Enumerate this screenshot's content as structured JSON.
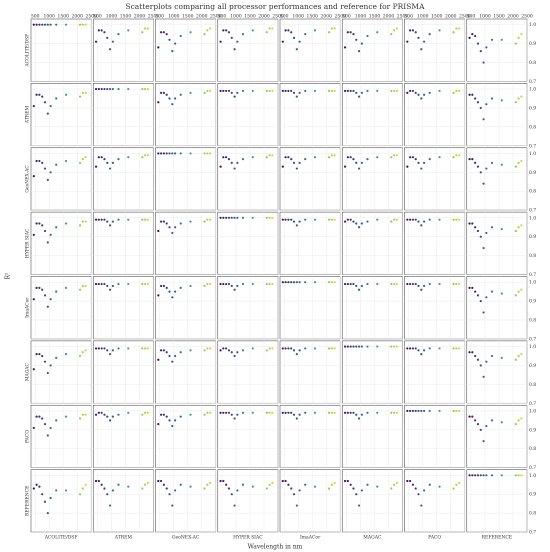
{
  "chart_data": {
    "type": "scatter_matrix",
    "title": "Scatterplots comparing all processor performances and reference for PRISMA",
    "x_label": "Wavelength in nm",
    "y_label": "R²",
    "processors": [
      "ACOLITE/DSF",
      "ATREM",
      "GeoNEX-AC",
      "HYPER SIAC",
      "ImaACor",
      "MAGAC",
      "PACO",
      "REFERENCE"
    ],
    "x": [
      450,
      550,
      650,
      750,
      850,
      950,
      1050,
      1250,
      1600,
      2100,
      2200,
      2300
    ],
    "xlim": [
      350,
      2500
    ],
    "xticks": [
      500,
      1000,
      1500,
      2000,
      2500
    ],
    "ylim": [
      0.7,
      1.03
    ],
    "yticks": [
      0.7,
      0.8,
      0.9,
      {
        "value": 1,
        "label": "1.0"
      }
    ],
    "grid": true,
    "colormap": "viridis",
    "panels": [
      [
        [
          1,
          1,
          1,
          1,
          1,
          1,
          1,
          1,
          1,
          1,
          1,
          1
        ],
        [
          0.91,
          0.97,
          0.97,
          0.96,
          0.93,
          0.87,
          0.91,
          0.95,
          0.97,
          0.96,
          0.98,
          0.98
        ],
        [
          0.88,
          0.96,
          0.96,
          0.95,
          0.92,
          0.86,
          0.9,
          0.94,
          0.96,
          0.95,
          0.97,
          0.98
        ],
        [
          0.91,
          0.97,
          0.97,
          0.96,
          0.93,
          0.87,
          0.91,
          0.95,
          0.97,
          0.96,
          0.98,
          0.98
        ],
        [
          0.91,
          0.97,
          0.97,
          0.96,
          0.93,
          0.87,
          0.91,
          0.95,
          0.97,
          0.96,
          0.98,
          0.98
        ],
        [
          0.88,
          0.96,
          0.96,
          0.95,
          0.92,
          0.86,
          0.9,
          0.94,
          0.96,
          0.95,
          0.97,
          0.98
        ],
        [
          0.91,
          0.97,
          0.97,
          0.96,
          0.93,
          0.87,
          0.91,
          0.95,
          0.97,
          0.96,
          0.98,
          0.98
        ],
        [
          0.93,
          0.95,
          0.94,
          0.9,
          0.86,
          0.8,
          0.88,
          0.92,
          0.92,
          0.9,
          0.93,
          0.95
        ]
      ],
      [
        [
          0.91,
          0.97,
          0.97,
          0.96,
          0.93,
          0.87,
          0.91,
          0.95,
          0.97,
          0.96,
          0.98,
          0.98
        ],
        [
          1,
          1,
          1,
          1,
          1,
          1,
          1,
          1,
          1,
          1,
          1,
          1
        ],
        [
          0.93,
          0.98,
          0.98,
          0.97,
          0.95,
          0.92,
          0.95,
          0.97,
          0.98,
          0.98,
          0.99,
          0.99
        ],
        [
          0.99,
          0.99,
          0.99,
          0.99,
          0.98,
          0.96,
          0.98,
          0.99,
          0.99,
          0.99,
          0.99,
          0.99
        ],
        [
          0.99,
          0.99,
          0.99,
          0.99,
          0.98,
          0.96,
          0.98,
          0.99,
          0.99,
          0.99,
          0.99,
          0.99
        ],
        [
          0.99,
          0.99,
          0.99,
          0.99,
          0.98,
          0.96,
          0.98,
          0.99,
          0.99,
          0.99,
          0.99,
          0.99
        ],
        [
          0.98,
          0.99,
          0.99,
          0.98,
          0.97,
          0.95,
          0.97,
          0.98,
          0.99,
          0.98,
          0.99,
          0.99
        ],
        [
          0.97,
          0.97,
          0.95,
          0.93,
          0.9,
          0.84,
          0.92,
          0.95,
          0.94,
          0.93,
          0.95,
          0.96
        ]
      ],
      [
        [
          0.88,
          0.96,
          0.96,
          0.95,
          0.92,
          0.86,
          0.9,
          0.94,
          0.96,
          0.95,
          0.97,
          0.98
        ],
        [
          0.93,
          0.98,
          0.98,
          0.97,
          0.95,
          0.92,
          0.95,
          0.97,
          0.98,
          0.98,
          0.99,
          0.99
        ],
        [
          1,
          1,
          1,
          1,
          1,
          1,
          1,
          1,
          1,
          1,
          1,
          1
        ],
        [
          0.93,
          0.98,
          0.98,
          0.97,
          0.95,
          0.92,
          0.95,
          0.97,
          0.98,
          0.98,
          0.99,
          0.99
        ],
        [
          0.93,
          0.98,
          0.98,
          0.97,
          0.95,
          0.92,
          0.95,
          0.97,
          0.98,
          0.98,
          0.99,
          0.99
        ],
        [
          0.93,
          0.98,
          0.98,
          0.97,
          0.95,
          0.92,
          0.95,
          0.97,
          0.98,
          0.98,
          0.99,
          0.99
        ],
        [
          0.93,
          0.98,
          0.98,
          0.97,
          0.95,
          0.92,
          0.95,
          0.97,
          0.98,
          0.98,
          0.99,
          0.99
        ],
        [
          0.97,
          0.97,
          0.95,
          0.93,
          0.9,
          0.84,
          0.92,
          0.95,
          0.94,
          0.93,
          0.95,
          0.96
        ]
      ],
      [
        [
          0.91,
          0.97,
          0.97,
          0.96,
          0.93,
          0.87,
          0.91,
          0.95,
          0.97,
          0.96,
          0.98,
          0.98
        ],
        [
          0.99,
          0.99,
          0.99,
          0.99,
          0.98,
          0.96,
          0.98,
          0.99,
          0.99,
          0.99,
          0.99,
          0.99
        ],
        [
          0.93,
          0.98,
          0.98,
          0.97,
          0.95,
          0.92,
          0.95,
          0.97,
          0.98,
          0.98,
          0.99,
          0.99
        ],
        [
          1,
          1,
          1,
          1,
          1,
          1,
          1,
          1,
          1,
          1,
          1,
          1
        ],
        [
          0.99,
          0.99,
          0.99,
          0.99,
          0.98,
          0.96,
          0.98,
          0.99,
          0.99,
          0.99,
          0.99,
          0.99
        ],
        [
          0.98,
          0.99,
          0.99,
          0.98,
          0.97,
          0.95,
          0.97,
          0.98,
          0.99,
          0.98,
          0.99,
          0.99
        ],
        [
          0.99,
          0.99,
          0.99,
          0.99,
          0.98,
          0.96,
          0.98,
          0.99,
          0.99,
          0.99,
          0.99,
          0.99
        ],
        [
          0.97,
          0.97,
          0.95,
          0.93,
          0.9,
          0.84,
          0.92,
          0.95,
          0.94,
          0.93,
          0.95,
          0.96
        ]
      ],
      [
        [
          0.91,
          0.97,
          0.97,
          0.96,
          0.93,
          0.87,
          0.91,
          0.95,
          0.97,
          0.96,
          0.98,
          0.98
        ],
        [
          0.99,
          0.99,
          0.99,
          0.99,
          0.98,
          0.96,
          0.98,
          0.99,
          0.99,
          0.99,
          0.99,
          0.99
        ],
        [
          0.93,
          0.98,
          0.98,
          0.97,
          0.95,
          0.92,
          0.95,
          0.97,
          0.98,
          0.98,
          0.99,
          0.99
        ],
        [
          0.99,
          0.99,
          0.99,
          0.99,
          0.98,
          0.96,
          0.98,
          0.99,
          0.99,
          0.99,
          0.99,
          0.99
        ],
        [
          1,
          1,
          1,
          1,
          1,
          1,
          1,
          1,
          1,
          1,
          1,
          1
        ],
        [
          0.99,
          0.99,
          0.99,
          0.99,
          0.98,
          0.96,
          0.98,
          0.99,
          0.99,
          0.99,
          0.99,
          0.99
        ],
        [
          0.99,
          0.99,
          0.99,
          0.99,
          0.98,
          0.96,
          0.98,
          0.99,
          0.99,
          0.99,
          0.99,
          0.99
        ],
        [
          0.97,
          0.97,
          0.95,
          0.93,
          0.9,
          0.84,
          0.92,
          0.95,
          0.94,
          0.93,
          0.95,
          0.96
        ]
      ],
      [
        [
          0.88,
          0.96,
          0.96,
          0.95,
          0.92,
          0.86,
          0.9,
          0.94,
          0.96,
          0.95,
          0.97,
          0.98
        ],
        [
          0.99,
          0.99,
          0.99,
          0.99,
          0.98,
          0.96,
          0.98,
          0.99,
          0.99,
          0.99,
          0.99,
          0.99
        ],
        [
          0.93,
          0.98,
          0.98,
          0.97,
          0.95,
          0.92,
          0.95,
          0.97,
          0.98,
          0.98,
          0.99,
          0.99
        ],
        [
          0.98,
          0.99,
          0.99,
          0.98,
          0.97,
          0.95,
          0.97,
          0.98,
          0.99,
          0.98,
          0.99,
          0.99
        ],
        [
          0.99,
          0.99,
          0.99,
          0.99,
          0.98,
          0.96,
          0.98,
          0.99,
          0.99,
          0.99,
          0.99,
          0.99
        ],
        [
          1,
          1,
          1,
          1,
          1,
          1,
          1,
          1,
          1,
          1,
          1,
          1
        ],
        [
          0.99,
          0.99,
          0.99,
          0.99,
          0.98,
          0.96,
          0.98,
          0.99,
          0.99,
          0.99,
          0.99,
          0.99
        ],
        [
          0.97,
          0.97,
          0.95,
          0.93,
          0.9,
          0.84,
          0.92,
          0.95,
          0.94,
          0.93,
          0.95,
          0.96
        ]
      ],
      [
        [
          0.91,
          0.97,
          0.97,
          0.96,
          0.93,
          0.87,
          0.91,
          0.95,
          0.97,
          0.96,
          0.98,
          0.98
        ],
        [
          0.98,
          0.99,
          0.99,
          0.98,
          0.97,
          0.95,
          0.97,
          0.98,
          0.99,
          0.98,
          0.99,
          0.99
        ],
        [
          0.93,
          0.98,
          0.98,
          0.97,
          0.95,
          0.92,
          0.95,
          0.97,
          0.98,
          0.98,
          0.99,
          0.99
        ],
        [
          0.99,
          0.99,
          0.99,
          0.99,
          0.98,
          0.96,
          0.98,
          0.99,
          0.99,
          0.99,
          0.99,
          0.99
        ],
        [
          0.99,
          0.99,
          0.99,
          0.99,
          0.98,
          0.96,
          0.98,
          0.99,
          0.99,
          0.99,
          0.99,
          0.99
        ],
        [
          0.99,
          0.99,
          0.99,
          0.99,
          0.98,
          0.96,
          0.98,
          0.99,
          0.99,
          0.99,
          0.99,
          0.99
        ],
        [
          1,
          1,
          1,
          1,
          1,
          1,
          1,
          1,
          1,
          1,
          1,
          1
        ],
        [
          0.97,
          0.97,
          0.95,
          0.93,
          0.9,
          0.84,
          0.92,
          0.95,
          0.94,
          0.93,
          0.95,
          0.96
        ]
      ],
      [
        [
          0.93,
          0.95,
          0.94,
          0.9,
          0.86,
          0.8,
          0.88,
          0.92,
          0.92,
          0.9,
          0.93,
          0.95
        ],
        [
          0.97,
          0.97,
          0.95,
          0.93,
          0.9,
          0.84,
          0.92,
          0.95,
          0.94,
          0.93,
          0.95,
          0.96
        ],
        [
          0.97,
          0.97,
          0.95,
          0.93,
          0.9,
          0.84,
          0.92,
          0.95,
          0.94,
          0.93,
          0.95,
          0.96
        ],
        [
          0.97,
          0.97,
          0.95,
          0.93,
          0.9,
          0.84,
          0.92,
          0.95,
          0.94,
          0.93,
          0.95,
          0.96
        ],
        [
          0.97,
          0.97,
          0.95,
          0.93,
          0.9,
          0.84,
          0.92,
          0.95,
          0.94,
          0.93,
          0.95,
          0.96
        ],
        [
          0.97,
          0.97,
          0.95,
          0.93,
          0.9,
          0.84,
          0.92,
          0.95,
          0.94,
          0.93,
          0.95,
          0.96
        ],
        [
          0.97,
          0.97,
          0.95,
          0.93,
          0.9,
          0.84,
          0.92,
          0.95,
          0.94,
          0.93,
          0.95,
          0.96
        ],
        [
          1,
          1,
          1,
          1,
          1,
          1,
          1,
          1,
          1,
          1,
          1,
          1
        ]
      ]
    ]
  }
}
